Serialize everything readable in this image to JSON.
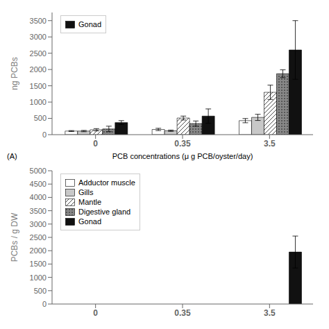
{
  "chart_data": [
    {
      "type": "bar",
      "x_label": "PCB concentrations (μ g PCB/oyster/day)",
      "y_label": "ng PCBs",
      "annotations": [
        "(A)"
      ],
      "categories": [
        "0",
        "0.35",
        "3.5"
      ],
      "series": [
        {
          "name": "Adductor muscle",
          "color": "white",
          "values": [
            110,
            160,
            430
          ],
          "errors": [
            15,
            35,
            65
          ],
          "legend": false
        },
        {
          "name": "Gills",
          "color": "#c8c8c8",
          "values": [
            110,
            120,
            530
          ],
          "errors": [
            20,
            20,
            95
          ],
          "legend": false
        },
        {
          "name": "Mantle",
          "color": "white",
          "values": [
            150,
            510,
            1300
          ],
          "errors": [
            35,
            60,
            220
          ],
          "legend": false
        },
        {
          "name": "Digestive gland",
          "color": "#888888",
          "values": [
            175,
            340,
            1870
          ],
          "errors": [
            85,
            80,
            120
          ],
          "legend": false
        },
        {
          "name": "Gonad",
          "color": "#111111",
          "values": [
            370,
            570,
            2600
          ],
          "errors": [
            60,
            220,
            900
          ]
        }
      ],
      "ylim": [
        0,
        3750
      ],
      "yticks": [
        0,
        500,
        1000,
        1500,
        2000,
        2500,
        3000,
        3500
      ],
      "grid": false,
      "legend": "upper left"
    },
    {
      "type": "bar",
      "y_label": "PCBs / g DW",
      "categories": [
        "0",
        "0.35",
        "3.5"
      ],
      "series": [
        {
          "name": "Adductor muscle",
          "color": "white",
          "values": [
            null,
            null,
            null
          ]
        },
        {
          "name": "Gills",
          "color": "#c8c8c8",
          "values": [
            null,
            null,
            null
          ]
        },
        {
          "name": "Mantle",
          "color": "white",
          "values": [
            null,
            null,
            null
          ]
        },
        {
          "name": "Digestive gland",
          "color": "#888888",
          "values": [
            null,
            null,
            null
          ]
        },
        {
          "name": "Gonad",
          "color": "#111111",
          "values": [
            null,
            null,
            1950
          ],
          "errors": [
            null,
            null,
            600
          ]
        }
      ],
      "ylim": [
        0,
        5000
      ],
      "yticks": [
        0,
        500,
        1000,
        1500,
        2000,
        2500,
        3000,
        3500,
        4000,
        4500,
        5000
      ],
      "grid": false,
      "legend": "upper left"
    }
  ]
}
